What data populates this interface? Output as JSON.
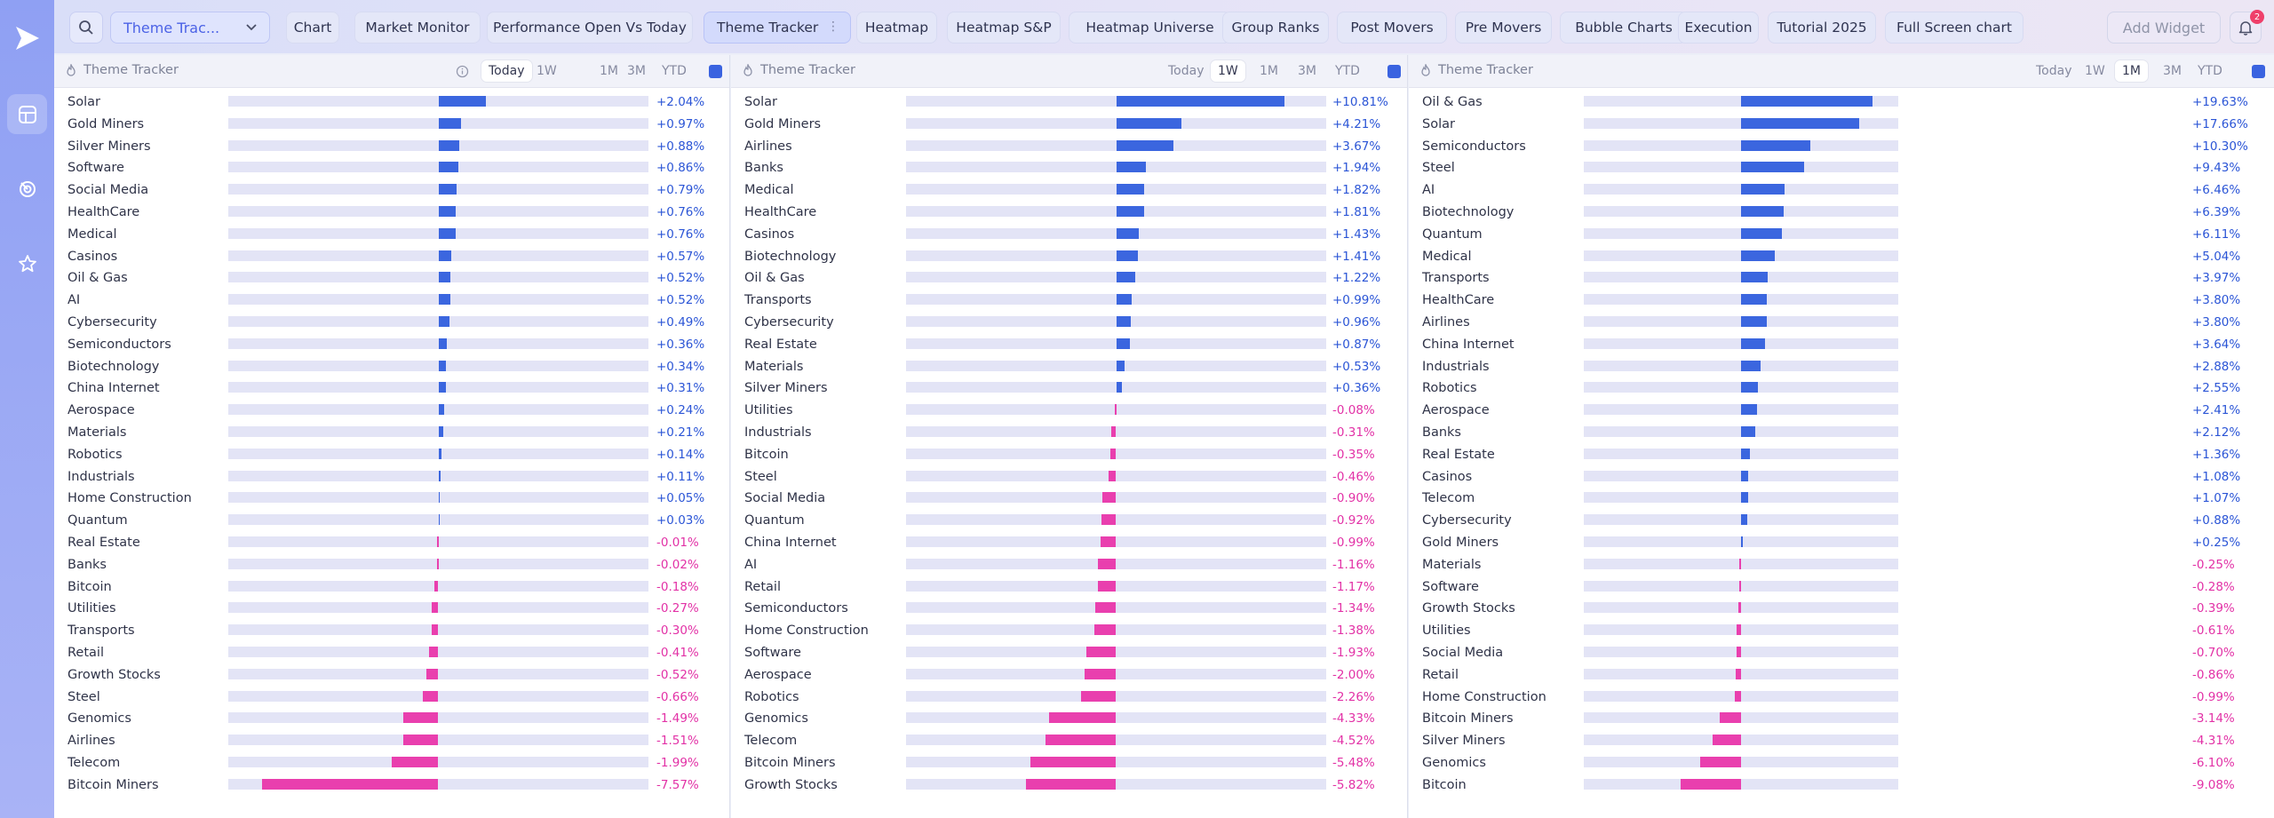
{
  "topbar": {
    "layout_name": "Theme Trac...",
    "tabs": [
      {
        "label": "Chart",
        "active": false
      },
      {
        "label": "Market Monitor",
        "active": false
      },
      {
        "label": "Performance Open Vs Today",
        "active": false
      },
      {
        "label": "Theme Tracker",
        "active": true
      },
      {
        "label": "Heatmap",
        "active": false
      },
      {
        "label": "Heatmap S&P",
        "active": false
      },
      {
        "label": "Heatmap Universe",
        "active": false
      },
      {
        "label": "Group Ranks",
        "active": false
      },
      {
        "label": "Post Movers",
        "active": false
      },
      {
        "label": "Pre Movers",
        "active": false
      },
      {
        "label": "Bubble Charts",
        "active": false
      },
      {
        "label": "Execution",
        "active": false
      },
      {
        "label": "Tutorial 2025",
        "active": false
      },
      {
        "label": "Full Screen chart",
        "active": false
      }
    ],
    "add_widget": "Add Widget",
    "notification_count": "2"
  },
  "colors": {
    "positive": "#3b66df",
    "negative": "#e93fae",
    "accent": "#4b62e6"
  },
  "ranges": [
    "Today",
    "1W",
    "1M",
    "3M",
    "YTD"
  ],
  "panels": [
    {
      "title": "Theme Tracker",
      "active_range": "Today",
      "max_abs": 9,
      "rows": [
        {
          "name": "Solar",
          "value": 2.04,
          "label": "+2.04%"
        },
        {
          "name": "Gold Miners",
          "value": 0.97,
          "label": "+0.97%"
        },
        {
          "name": "Silver Miners",
          "value": 0.88,
          "label": "+0.88%"
        },
        {
          "name": "Software",
          "value": 0.86,
          "label": "+0.86%"
        },
        {
          "name": "Social Media",
          "value": 0.79,
          "label": "+0.79%"
        },
        {
          "name": "HealthCare",
          "value": 0.76,
          "label": "+0.76%"
        },
        {
          "name": "Medical",
          "value": 0.76,
          "label": "+0.76%"
        },
        {
          "name": "Casinos",
          "value": 0.57,
          "label": "+0.57%"
        },
        {
          "name": "Oil & Gas",
          "value": 0.52,
          "label": "+0.52%"
        },
        {
          "name": "AI",
          "value": 0.52,
          "label": "+0.52%"
        },
        {
          "name": "Cybersecurity",
          "value": 0.49,
          "label": "+0.49%"
        },
        {
          "name": "Semiconductors",
          "value": 0.36,
          "label": "+0.36%"
        },
        {
          "name": "Biotechnology",
          "value": 0.34,
          "label": "+0.34%"
        },
        {
          "name": "China Internet",
          "value": 0.31,
          "label": "+0.31%"
        },
        {
          "name": "Aerospace",
          "value": 0.24,
          "label": "+0.24%"
        },
        {
          "name": "Materials",
          "value": 0.21,
          "label": "+0.21%"
        },
        {
          "name": "Robotics",
          "value": 0.14,
          "label": "+0.14%"
        },
        {
          "name": "Industrials",
          "value": 0.11,
          "label": "+0.11%"
        },
        {
          "name": "Home Construction",
          "value": 0.05,
          "label": "+0.05%"
        },
        {
          "name": "Quantum",
          "value": 0.03,
          "label": "+0.03%"
        },
        {
          "name": "Real Estate",
          "value": -0.01,
          "label": "-0.01%"
        },
        {
          "name": "Banks",
          "value": -0.02,
          "label": "-0.02%"
        },
        {
          "name": "Bitcoin",
          "value": -0.18,
          "label": "-0.18%"
        },
        {
          "name": "Utilities",
          "value": -0.27,
          "label": "-0.27%"
        },
        {
          "name": "Transports",
          "value": -0.3,
          "label": "-0.30%"
        },
        {
          "name": "Retail",
          "value": -0.41,
          "label": "-0.41%"
        },
        {
          "name": "Growth Stocks",
          "value": -0.52,
          "label": "-0.52%"
        },
        {
          "name": "Steel",
          "value": -0.66,
          "label": "-0.66%"
        },
        {
          "name": "Genomics",
          "value": -1.49,
          "label": "-1.49%"
        },
        {
          "name": "Airlines",
          "value": -1.51,
          "label": "-1.51%"
        },
        {
          "name": "Telecom",
          "value": -1.99,
          "label": "-1.99%"
        },
        {
          "name": "Bitcoin Miners",
          "value": -7.57,
          "label": "-7.57%"
        }
      ]
    },
    {
      "title": "Theme Tracker",
      "active_range": "1W",
      "max_abs": 13.5,
      "rows": [
        {
          "name": "Solar",
          "value": 10.81,
          "label": "+10.81%"
        },
        {
          "name": "Gold Miners",
          "value": 4.21,
          "label": "+4.21%"
        },
        {
          "name": "Airlines",
          "value": 3.67,
          "label": "+3.67%"
        },
        {
          "name": "Banks",
          "value": 1.94,
          "label": "+1.94%"
        },
        {
          "name": "Medical",
          "value": 1.82,
          "label": "+1.82%"
        },
        {
          "name": "HealthCare",
          "value": 1.81,
          "label": "+1.81%"
        },
        {
          "name": "Casinos",
          "value": 1.43,
          "label": "+1.43%"
        },
        {
          "name": "Biotechnology",
          "value": 1.41,
          "label": "+1.41%"
        },
        {
          "name": "Oil & Gas",
          "value": 1.22,
          "label": "+1.22%"
        },
        {
          "name": "Transports",
          "value": 0.99,
          "label": "+0.99%"
        },
        {
          "name": "Cybersecurity",
          "value": 0.96,
          "label": "+0.96%"
        },
        {
          "name": "Real Estate",
          "value": 0.87,
          "label": "+0.87%"
        },
        {
          "name": "Materials",
          "value": 0.53,
          "label": "+0.53%"
        },
        {
          "name": "Silver Miners",
          "value": 0.36,
          "label": "+0.36%"
        },
        {
          "name": "Utilities",
          "value": -0.08,
          "label": "-0.08%"
        },
        {
          "name": "Industrials",
          "value": -0.31,
          "label": "-0.31%"
        },
        {
          "name": "Bitcoin",
          "value": -0.35,
          "label": "-0.35%"
        },
        {
          "name": "Steel",
          "value": -0.46,
          "label": "-0.46%"
        },
        {
          "name": "Social Media",
          "value": -0.9,
          "label": "-0.90%"
        },
        {
          "name": "Quantum",
          "value": -0.92,
          "label": "-0.92%"
        },
        {
          "name": "China Internet",
          "value": -0.99,
          "label": "-0.99%"
        },
        {
          "name": "AI",
          "value": -1.16,
          "label": "-1.16%"
        },
        {
          "name": "Retail",
          "value": -1.17,
          "label": "-1.17%"
        },
        {
          "name": "Semiconductors",
          "value": -1.34,
          "label": "-1.34%"
        },
        {
          "name": "Home Construction",
          "value": -1.38,
          "label": "-1.38%"
        },
        {
          "name": "Software",
          "value": -1.93,
          "label": "-1.93%"
        },
        {
          "name": "Aerospace",
          "value": -2.0,
          "label": "-2.00%"
        },
        {
          "name": "Robotics",
          "value": -2.26,
          "label": "-2.26%"
        },
        {
          "name": "Genomics",
          "value": -4.33,
          "label": "-4.33%"
        },
        {
          "name": "Telecom",
          "value": -4.52,
          "label": "-4.52%"
        },
        {
          "name": "Bitcoin Miners",
          "value": -5.48,
          "label": "-5.48%"
        },
        {
          "name": "Growth Stocks",
          "value": -5.82,
          "label": "-5.82%"
        }
      ]
    },
    {
      "title": "Theme Tracker",
      "active_range": "1M",
      "max_abs": 23.5,
      "rows": [
        {
          "name": "Oil & Gas",
          "value": 19.63,
          "label": "+19.63%"
        },
        {
          "name": "Solar",
          "value": 17.66,
          "label": "+17.66%"
        },
        {
          "name": "Semiconductors",
          "value": 10.3,
          "label": "+10.30%"
        },
        {
          "name": "Steel",
          "value": 9.43,
          "label": "+9.43%"
        },
        {
          "name": "AI",
          "value": 6.46,
          "label": "+6.46%"
        },
        {
          "name": "Biotechnology",
          "value": 6.39,
          "label": "+6.39%"
        },
        {
          "name": "Quantum",
          "value": 6.11,
          "label": "+6.11%"
        },
        {
          "name": "Medical",
          "value": 5.04,
          "label": "+5.04%"
        },
        {
          "name": "Transports",
          "value": 3.97,
          "label": "+3.97%"
        },
        {
          "name": "HealthCare",
          "value": 3.8,
          "label": "+3.80%"
        },
        {
          "name": "Airlines",
          "value": 3.8,
          "label": "+3.80%"
        },
        {
          "name": "China Internet",
          "value": 3.64,
          "label": "+3.64%"
        },
        {
          "name": "Industrials",
          "value": 2.88,
          "label": "+2.88%"
        },
        {
          "name": "Robotics",
          "value": 2.55,
          "label": "+2.55%"
        },
        {
          "name": "Aerospace",
          "value": 2.41,
          "label": "+2.41%"
        },
        {
          "name": "Banks",
          "value": 2.12,
          "label": "+2.12%"
        },
        {
          "name": "Real Estate",
          "value": 1.36,
          "label": "+1.36%"
        },
        {
          "name": "Casinos",
          "value": 1.08,
          "label": "+1.08%"
        },
        {
          "name": "Telecom",
          "value": 1.07,
          "label": "+1.07%"
        },
        {
          "name": "Cybersecurity",
          "value": 0.88,
          "label": "+0.88%"
        },
        {
          "name": "Gold Miners",
          "value": 0.25,
          "label": "+0.25%"
        },
        {
          "name": "Materials",
          "value": -0.25,
          "label": "-0.25%"
        },
        {
          "name": "Software",
          "value": -0.28,
          "label": "-0.28%"
        },
        {
          "name": "Growth Stocks",
          "value": -0.39,
          "label": "-0.39%"
        },
        {
          "name": "Utilities",
          "value": -0.61,
          "label": "-0.61%"
        },
        {
          "name": "Social Media",
          "value": -0.7,
          "label": "-0.70%"
        },
        {
          "name": "Retail",
          "value": -0.86,
          "label": "-0.86%"
        },
        {
          "name": "Home Construction",
          "value": -0.99,
          "label": "-0.99%"
        },
        {
          "name": "Bitcoin Miners",
          "value": -3.14,
          "label": "-3.14%"
        },
        {
          "name": "Silver Miners",
          "value": -4.31,
          "label": "-4.31%"
        },
        {
          "name": "Genomics",
          "value": -6.1,
          "label": "-6.10%"
        },
        {
          "name": "Bitcoin",
          "value": -9.08,
          "label": "-9.08%"
        }
      ]
    }
  ]
}
